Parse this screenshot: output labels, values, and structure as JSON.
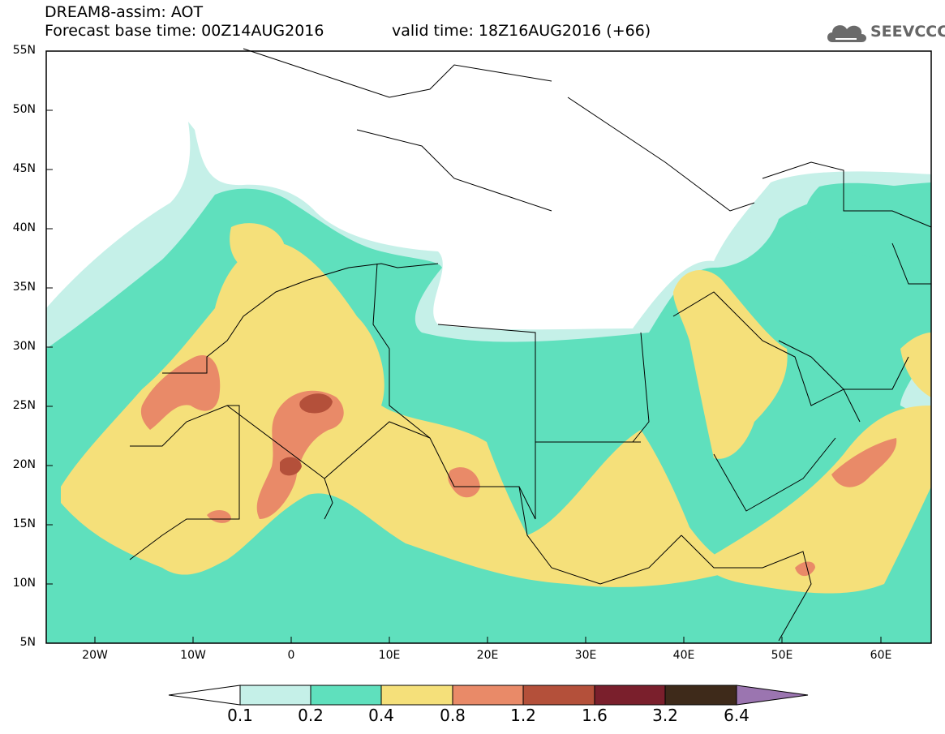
{
  "title": {
    "line1": "DREAM8-assim: AOT",
    "line2": "Forecast base time: 00Z14AUG2016",
    "valid": "valid time: 18Z16AUG2016 (+66)"
  },
  "logo": {
    "text": "SEEVCCC",
    "icon": "cloud-icon"
  },
  "map": {
    "lat_labels": [
      "55N",
      "50N",
      "45N",
      "40N",
      "35N",
      "30N",
      "25N",
      "20N",
      "15N",
      "10N",
      "5N"
    ],
    "lon_labels": [
      "20W",
      "10W",
      "0",
      "10E",
      "20E",
      "30E",
      "40E",
      "50E",
      "60E"
    ],
    "lat_range": [
      5,
      55
    ],
    "lon_range": [
      -25,
      65
    ]
  },
  "colorbar": {
    "ticks": [
      "0.1",
      "0.2",
      "0.4",
      "0.8",
      "1.2",
      "1.6",
      "3.2",
      "6.4"
    ],
    "colors": [
      "#ffffff",
      "#c5f0e8",
      "#5fe0bd",
      "#f5e07a",
      "#e98a68",
      "#b4503a",
      "#7a1f2c",
      "#3e2a1a",
      "#9b75b0"
    ]
  },
  "colors": {
    "ocean": "#ffffff",
    "lvl1": "#c5f0e8",
    "lvl2": "#5fe0bd",
    "lvl3": "#f5e07a",
    "lvl4": "#e98a68",
    "lvl5": "#b4503a",
    "border": "#000000"
  }
}
